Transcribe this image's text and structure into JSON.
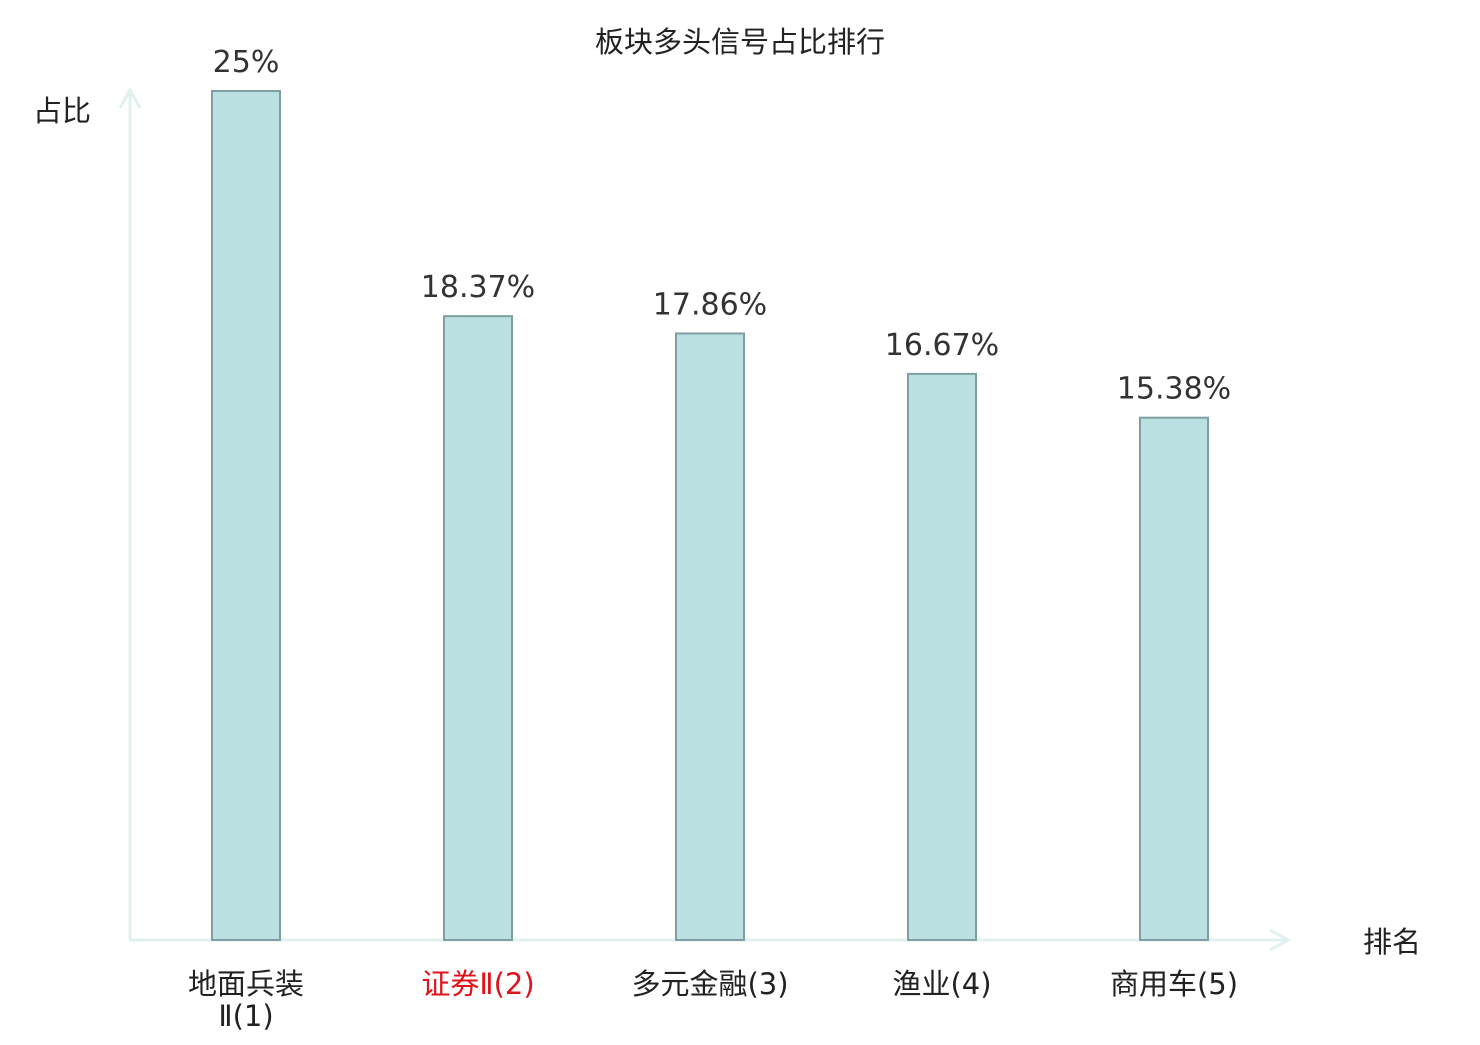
{
  "chart_data": {
    "type": "bar",
    "title": "板块多头信号占比排行",
    "ylabel": "占比",
    "xlabel": "排名",
    "ylim": [
      0,
      25
    ],
    "grid": false,
    "categories": [
      "地面兵装Ⅱ(1)",
      "证券Ⅱ(2)",
      "多元金融(3)",
      "渔业(4)",
      "商用车(5)"
    ],
    "category_lines": [
      [
        "地面兵装",
        "Ⅱ(1)"
      ],
      [
        "证券Ⅱ(2)"
      ],
      [
        "多元金融(3)"
      ],
      [
        "渔业(4)"
      ],
      [
        "商用车(5)"
      ]
    ],
    "values": [
      25,
      18.37,
      17.86,
      16.67,
      15.38
    ],
    "value_labels": [
      "25%",
      "18.37%",
      "17.86%",
      "16.67%",
      "15.38%"
    ],
    "highlight_index": 1,
    "colors": {
      "bar_fill": "#bbe0e2",
      "bar_stroke": "#7f9fa3",
      "axis": "#e0f2f0",
      "text": "#222222",
      "highlight_text": "#e0121b"
    }
  }
}
